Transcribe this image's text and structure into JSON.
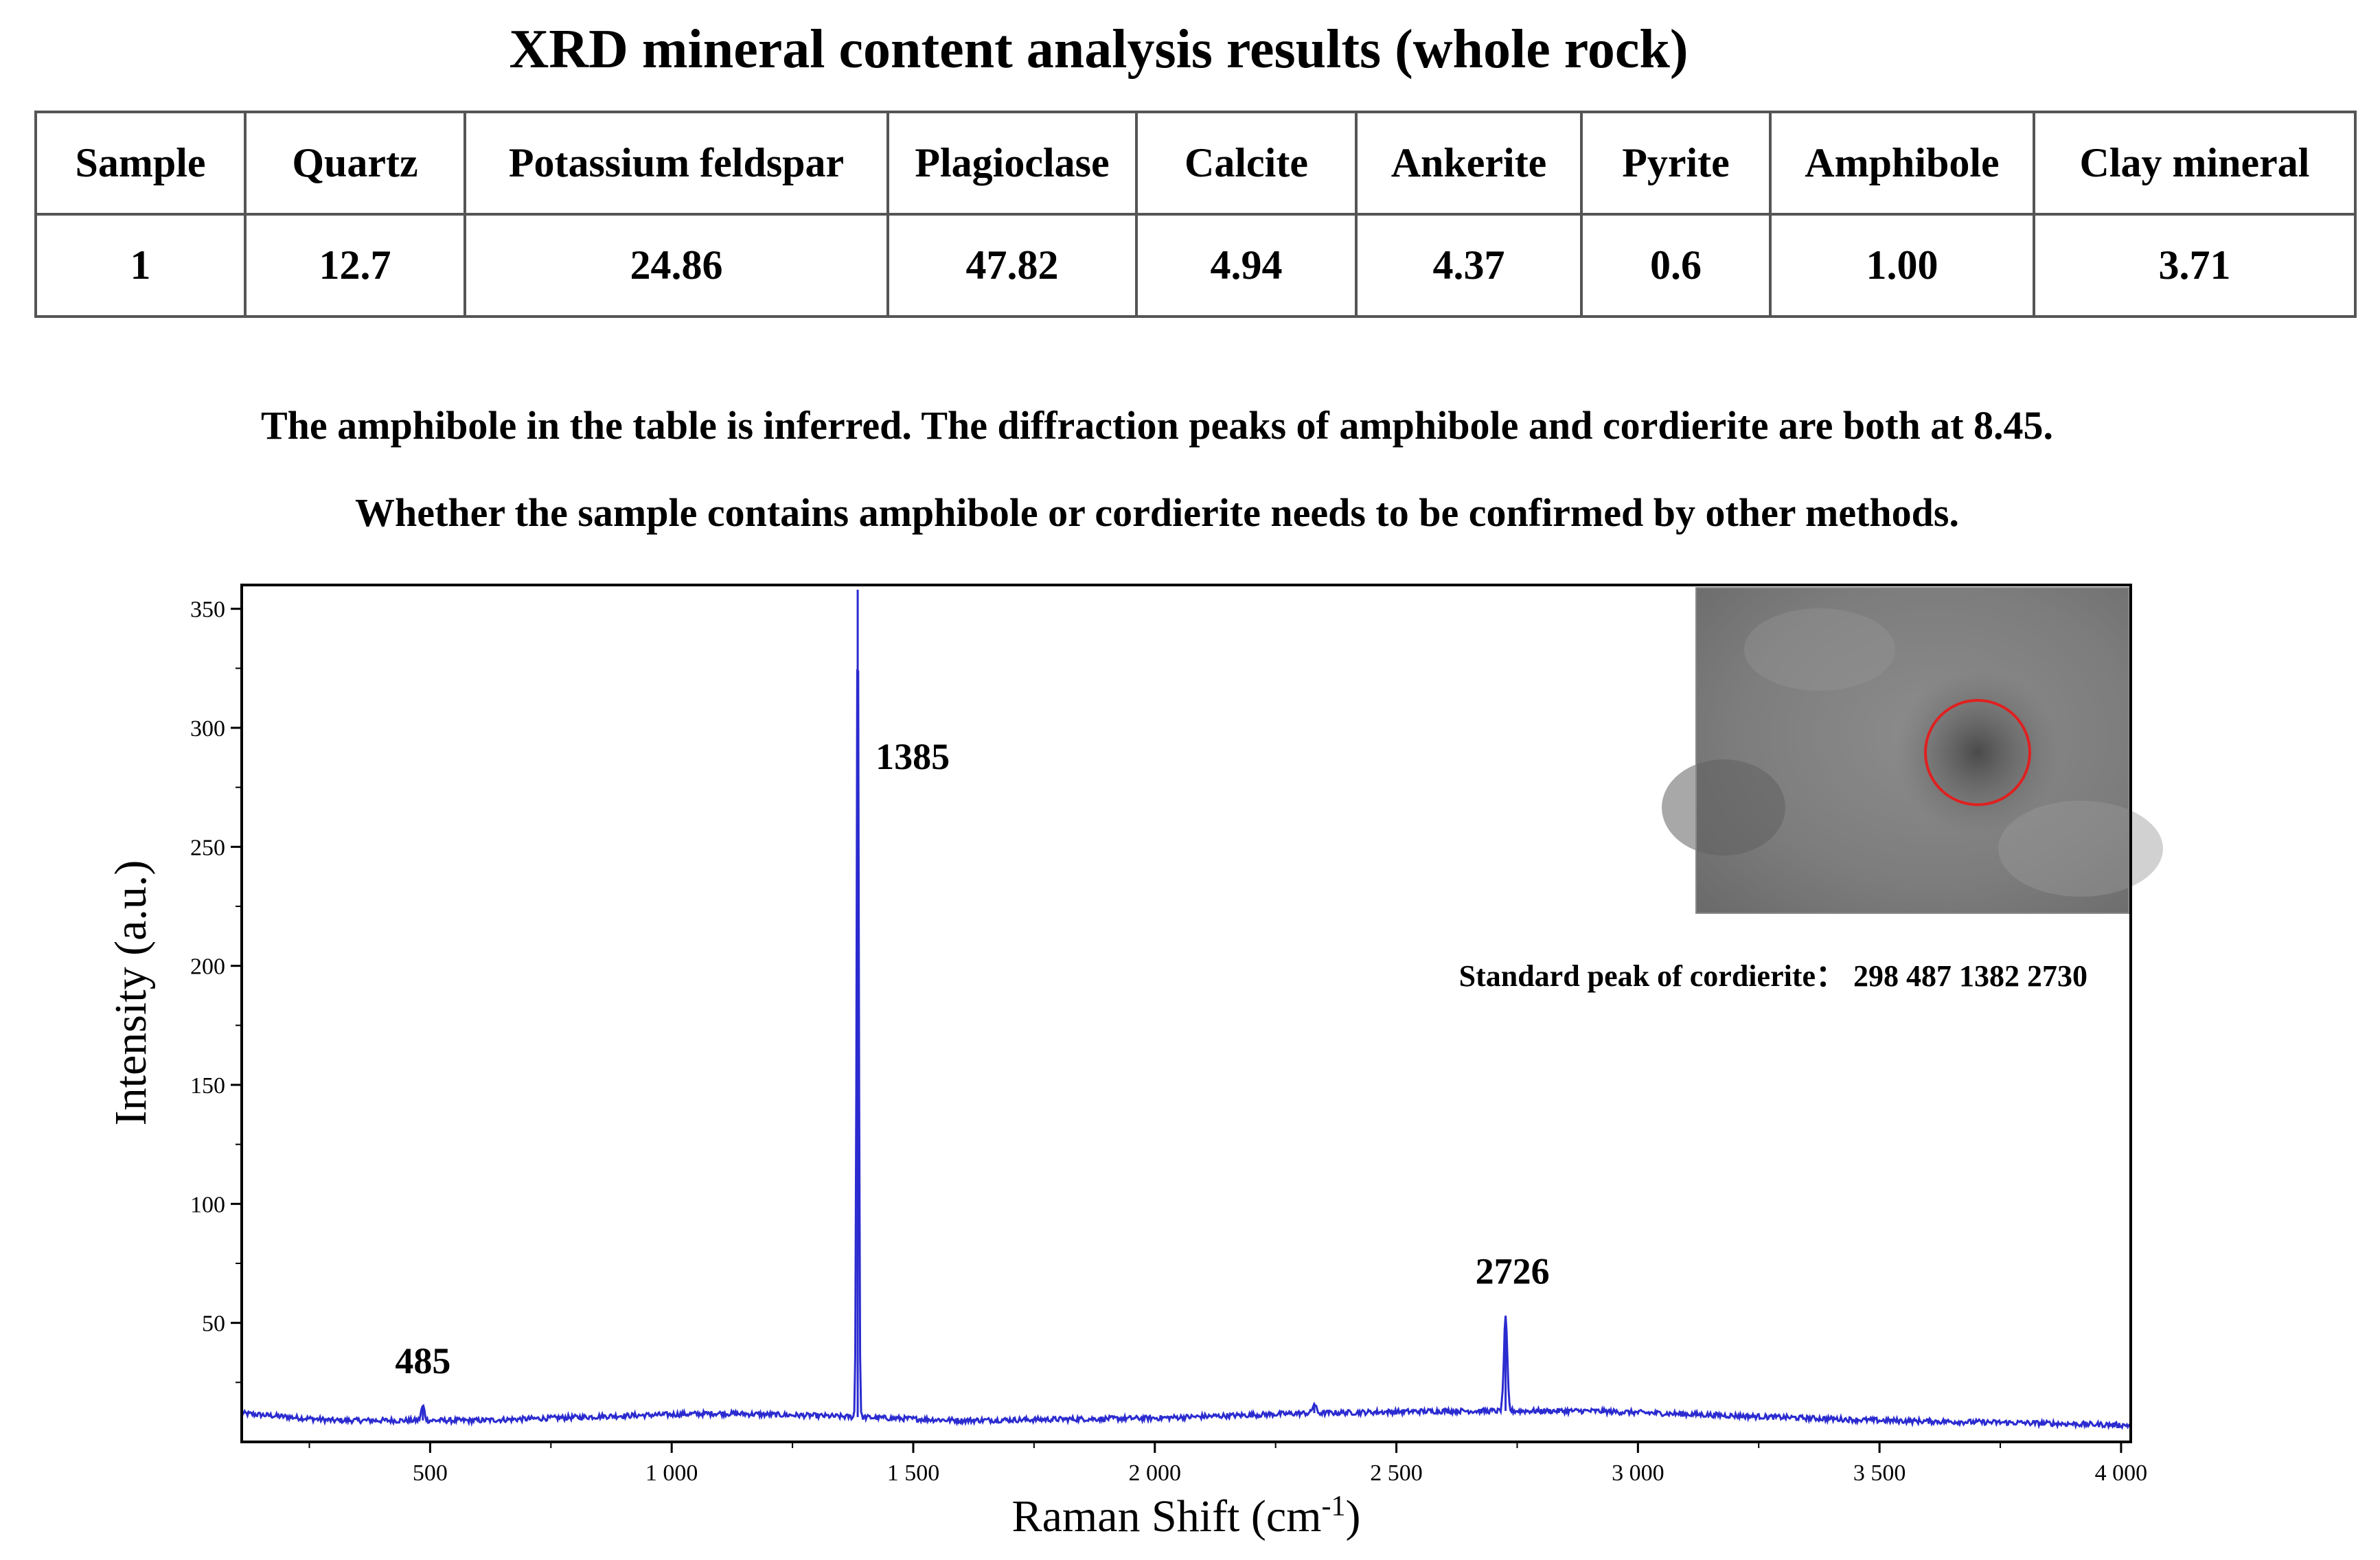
{
  "page_title": "XRD mineral content analysis results (whole rock)",
  "table": {
    "headers": [
      "Sample",
      "Quartz",
      "Potassium feldspar",
      "Plagioclase",
      "Calcite",
      "Ankerite",
      "Pyrite",
      "Amphibole",
      "Clay mineral"
    ],
    "rows": [
      [
        "1",
        "12.7",
        "24.86",
        "47.82",
        "4.94",
        "4.37",
        "0.6",
        "1.00",
        "3.71"
      ]
    ]
  },
  "notes": [
    "The amphibole in the table is inferred. The diffraction peaks of amphibole and cordierite are both at 8.45.",
    "Whether the sample contains amphibole or cordierite needs to be confirmed by other methods."
  ],
  "chart_data": {
    "type": "line",
    "xlabel": "Raman Shift (cm",
    "xlabel_superscript": "-1",
    "xlabel_close": ")",
    "ylabel": "Intensity (a.u.)",
    "xlim": [
      110,
      4020
    ],
    "ylim": [
      0,
      360
    ],
    "x_ticks": [
      500,
      1000,
      1500,
      2000,
      2500,
      3000,
      3500,
      4000
    ],
    "x_tick_labels": [
      "500",
      "1 000",
      "1 500",
      "2 000",
      "2 500",
      "3 000",
      "3 500",
      "4 000"
    ],
    "y_ticks": [
      50,
      100,
      150,
      200,
      250,
      300,
      350
    ],
    "y_tick_labels": [
      "50",
      "100",
      "150",
      "200",
      "250",
      "300",
      "350"
    ],
    "series_color": "#2b2bd0",
    "baseline": [
      [
        110,
        12
      ],
      [
        300,
        9
      ],
      [
        600,
        9
      ],
      [
        900,
        11
      ],
      [
        1100,
        12
      ],
      [
        1300,
        11
      ],
      [
        1600,
        9
      ],
      [
        2000,
        10
      ],
      [
        2300,
        12
      ],
      [
        2600,
        13
      ],
      [
        2900,
        13
      ],
      [
        3200,
        11
      ],
      [
        3500,
        9
      ],
      [
        3800,
        8
      ],
      [
        4020,
        7
      ]
    ],
    "peaks": [
      {
        "x": 485,
        "y": 15,
        "label": "485"
      },
      {
        "x": 1385,
        "y": 358,
        "label": "1385"
      },
      {
        "x": 2726,
        "y": 52,
        "label": "2726"
      }
    ],
    "minor_peaks": [
      {
        "x": 2330,
        "y": 16
      }
    ],
    "standard_peak_text": "Standard peak of cordierite：  298 487 1382 2730",
    "inset": {
      "description_icon": "microscope-image",
      "marker_color": "#e02020"
    }
  }
}
